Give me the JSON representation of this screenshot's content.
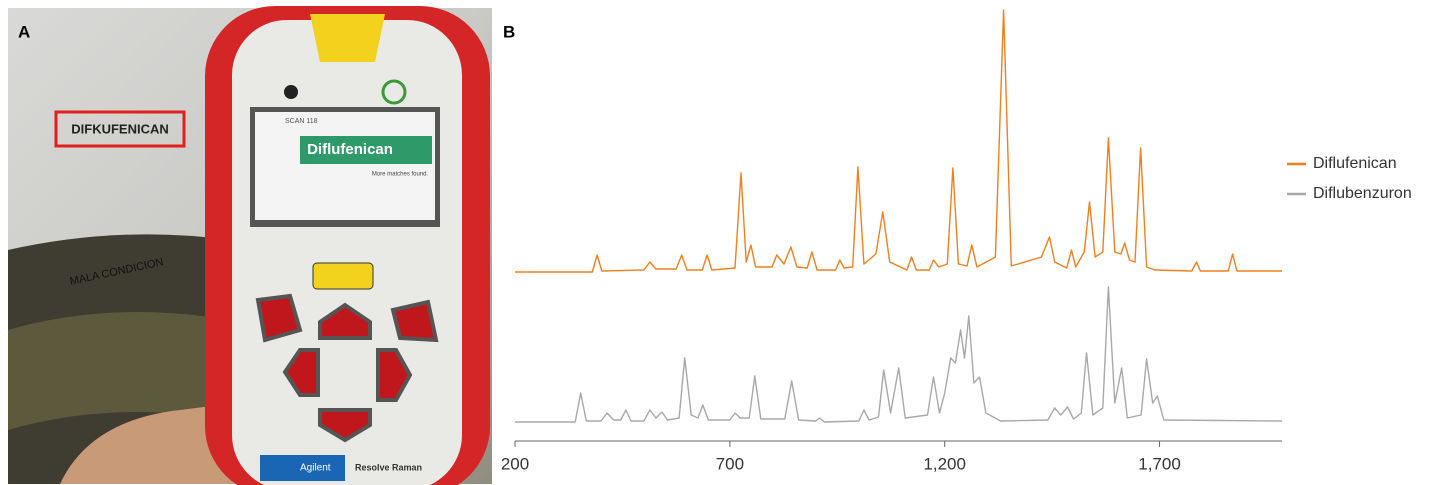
{
  "panel_a": {
    "label": "A",
    "sign": "DIFKUFENICAN",
    "floor_text": "MALA CONDICION",
    "screen_header": "SCAN 118",
    "screen_result": "Diflufenican",
    "screen_note": "More matches found.",
    "brand": "Agilent",
    "product": "Resolve Raman"
  },
  "chart_data": {
    "type": "line",
    "panel_label": "B",
    "xlim": [
      200,
      1985
    ],
    "xticks": [
      200,
      700,
      {
        "value": 1200,
        "label": "1,200"
      },
      {
        "value": 1700,
        "label": "1,700"
      }
    ],
    "legend": "right",
    "series": [
      {
        "name": "Diflufenican",
        "color": "#f07f1e",
        "x": [
          200,
          380,
          391,
          402,
          500,
          514,
          528,
          575,
          588,
          600,
          636,
          647,
          658,
          712,
          726,
          738,
          749,
          760,
          798,
          809,
          826,
          842,
          856,
          880,
          891,
          903,
          946,
          956,
          966,
          986,
          998,
          1012,
          1040,
          1056,
          1072,
          1112,
          1123,
          1134,
          1164,
          1174,
          1186,
          1206,
          1219,
          1232,
          1252,
          1263,
          1275,
          1318,
          1337,
          1355,
          1425,
          1444,
          1456,
          1484,
          1495,
          1505,
          1525,
          1537,
          1550,
          1568,
          1581,
          1596,
          1610,
          1619,
          1630,
          1643,
          1656,
          1670,
          1690,
          1775,
          1786,
          1795,
          1860,
          1870,
          1880,
          1985
        ],
        "values": [
          0,
          0,
          17,
          1,
          2,
          10,
          3,
          3,
          17,
          2,
          2,
          17,
          2,
          4,
          99,
          10,
          27,
          5,
          5,
          17,
          8,
          25,
          5,
          4,
          20,
          2,
          2,
          12,
          4,
          5,
          105,
          8,
          18,
          60,
          10,
          2,
          15,
          2,
          2,
          12,
          5,
          8,
          104,
          8,
          6,
          27,
          5,
          15,
          262,
          6,
          15,
          35,
          10,
          4,
          22,
          5,
          20,
          70,
          15,
          20,
          134,
          20,
          18,
          29,
          12,
          10,
          124,
          5,
          2,
          1,
          10,
          1,
          1,
          18,
          1,
          1
        ]
      },
      {
        "name": "Diflubenzuron",
        "color": "#a8a8a8",
        "x": [
          200,
          340,
          353,
          366,
          400,
          414,
          430,
          446,
          458,
          470,
          500,
          514,
          528,
          542,
          555,
          582,
          595,
          610,
          626,
          637,
          650,
          700,
          712,
          724,
          745,
          758,
          772,
          828,
          844,
          860,
          900,
          909,
          920,
          1000,
          1012,
          1024,
          1046,
          1058,
          1074,
          1093,
          1108,
          1160,
          1174,
          1188,
          1200,
          1214,
          1225,
          1237,
          1246,
          1256,
          1268,
          1281,
          1296,
          1330,
          1440,
          1456,
          1470,
          1486,
          1500,
          1518,
          1530,
          1545,
          1568,
          1581,
          1596,
          1612,
          1625,
          1657,
          1670,
          1684,
          1695,
          1710,
          1985
        ],
        "values": [
          1,
          1,
          30,
          2,
          2,
          10,
          3,
          3,
          13,
          2,
          2,
          13,
          5,
          11,
          3,
          5,
          65,
          8,
          5,
          18,
          3,
          3,
          10,
          5,
          5,
          47,
          4,
          4,
          42,
          3,
          2,
          5,
          1,
          2,
          13,
          3,
          6,
          53,
          10,
          55,
          5,
          8,
          46,
          10,
          30,
          65,
          60,
          93,
          65,
          107,
          40,
          46,
          10,
          2,
          3,
          15,
          8,
          16,
          4,
          10,
          70,
          8,
          15,
          136,
          20,
          55,
          5,
          8,
          64,
          20,
          27,
          3,
          2
        ]
      }
    ]
  }
}
